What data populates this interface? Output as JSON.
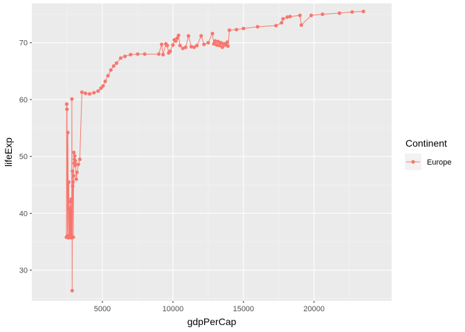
{
  "chart_data": {
    "type": "line",
    "xlabel": "gdpPerCap",
    "ylabel": "lifeExp",
    "xlim": [
      0,
      25500
    ],
    "ylim": [
      24.6,
      76.9
    ],
    "x_ticks": [
      5000,
      10000,
      15000,
      20000
    ],
    "y_ticks": [
      30,
      40,
      50,
      60,
      70
    ],
    "grid": true,
    "legend": {
      "title": "Continent",
      "position": "right",
      "entries": [
        "Europe"
      ]
    },
    "colors": {
      "series": "#F8766D",
      "panel": "#EBEBEB",
      "grid_major": "#FFFFFF",
      "grid_minor": "#F5F5F5"
    },
    "series": [
      {
        "name": "Europe",
        "x": [
          2450,
          2470,
          2490,
          2520,
          2550,
          2575,
          2600,
          2620,
          2640,
          2660,
          2680,
          2700,
          2720,
          2740,
          2760,
          2780,
          2800,
          2820,
          2840,
          2860,
          2880,
          2900,
          2920,
          2940,
          2960,
          2980,
          3000,
          3020,
          3040,
          3060,
          3080,
          3100,
          3150,
          3200,
          3300,
          3400,
          3550,
          3800,
          4100,
          4400,
          4700,
          4900,
          5050,
          5200,
          5400,
          5600,
          5800,
          6000,
          6300,
          6600,
          7000,
          7500,
          8000,
          9000,
          9200,
          9300,
          9500,
          9600,
          9700,
          9800,
          10000,
          10100,
          10200,
          10300,
          10400,
          10500,
          10700,
          10900,
          11100,
          11300,
          11500,
          11700,
          12000,
          12200,
          12500,
          12800,
          12900,
          13000,
          13100,
          13200,
          13300,
          13400,
          13500,
          13600,
          13700,
          13800,
          13850,
          13900,
          14000,
          14500,
          15000,
          16000,
          17300,
          17700,
          17800,
          18100,
          18300,
          19000,
          19100,
          19800,
          20600,
          21800,
          22700,
          23500
        ],
        "y": [
          35.8,
          59.2,
          58.3,
          36.0,
          54.2,
          45.3,
          35.7,
          45.5,
          40.8,
          36.1,
          40.2,
          35.8,
          42.1,
          35.9,
          41.0,
          36.2,
          42.5,
          35.7,
          60.1,
          26.4,
          47.4,
          44.8,
          45.5,
          35.8,
          46.6,
          50.7,
          48.8,
          49.5,
          50.1,
          48.4,
          49.2,
          48.6,
          46.0,
          47.2,
          48.6,
          49.5,
          61.3,
          61.1,
          61.0,
          61.2,
          61.5,
          62.0,
          62.4,
          63.2,
          64.2,
          65.2,
          65.9,
          66.4,
          67.3,
          67.6,
          67.9,
          68.0,
          68.0,
          68.0,
          69.7,
          67.9,
          69.8,
          69.5,
          68.2,
          68.5,
          69.6,
          70.5,
          70.3,
          70.8,
          71.3,
          69.5,
          69.0,
          69.2,
          71.2,
          69.3,
          69.2,
          69.5,
          71.2,
          69.7,
          70.0,
          71.6,
          69.8,
          70.3,
          69.6,
          70.2,
          69.5,
          70.0,
          69.2,
          69.8,
          69.6,
          69.9,
          70.1,
          69.4,
          72.2,
          72.3,
          72.5,
          72.8,
          73.0,
          73.5,
          74.2,
          74.5,
          74.6,
          74.8,
          73.1,
          74.8,
          75.0,
          75.2,
          75.4,
          75.5
        ]
      }
    ]
  }
}
